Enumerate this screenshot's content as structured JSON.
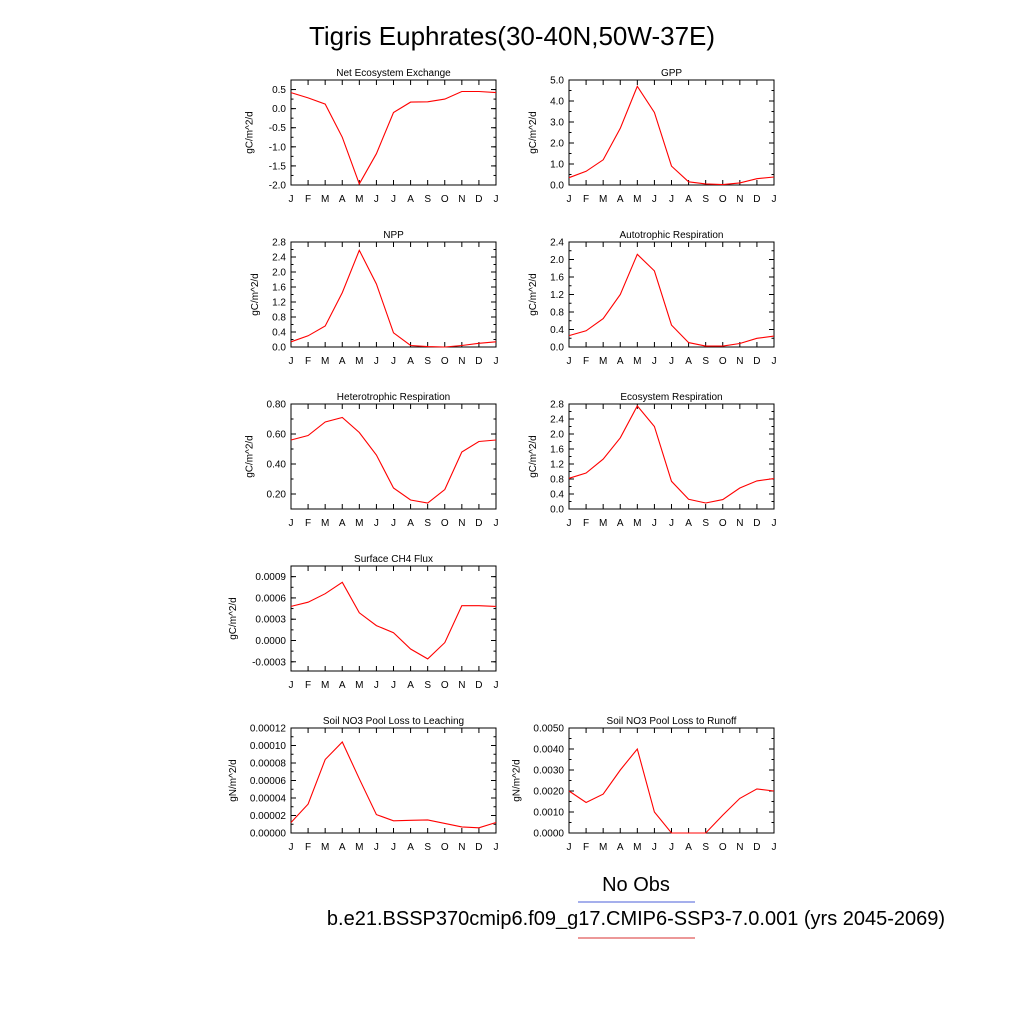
{
  "figure": {
    "title": "Tigris Euphrates(30-40N,50W-37E)",
    "legend": {
      "obs_label": "No Obs",
      "obs_color": "#6f7fe0",
      "model_label": "b.e21.BSSP370cmip6.f09_g17.CMIP6-SSP3-7.0.001 (yrs 2045-2069)",
      "model_color": "#e05a5a"
    },
    "line_color": "#ff0000"
  },
  "chart_data": [
    {
      "type": "line",
      "title": "Net Ecosystem Exchange",
      "ylabel": "gC/m^2/d",
      "x": [
        "J",
        "F",
        "M",
        "A",
        "M",
        "J",
        "J",
        "A",
        "S",
        "O",
        "N",
        "D",
        "J"
      ],
      "yticks": [
        "0.5",
        "0.0",
        "-0.5",
        "-1.0",
        "-1.5",
        "-2.0"
      ],
      "ylim": [
        -2.0,
        0.75
      ],
      "series": [
        {
          "values": [
            0.42,
            0.28,
            0.12,
            -0.75,
            -1.97,
            -1.18,
            -0.1,
            0.17,
            0.18,
            0.25,
            0.45,
            0.45,
            0.42
          ]
        }
      ]
    },
    {
      "type": "line",
      "title": "GPP",
      "ylabel": "gC/m^2/d",
      "x": [
        "J",
        "F",
        "M",
        "A",
        "M",
        "J",
        "J",
        "A",
        "S",
        "O",
        "N",
        "D",
        "J"
      ],
      "yticks": [
        "5.0",
        "4.0",
        "3.0",
        "2.0",
        "1.0",
        "0.0"
      ],
      "ylim": [
        0.0,
        5.0
      ],
      "series": [
        {
          "values": [
            0.35,
            0.65,
            1.2,
            2.7,
            4.7,
            3.45,
            0.9,
            0.15,
            0.05,
            0.02,
            0.1,
            0.3,
            0.38
          ]
        }
      ]
    },
    {
      "type": "line",
      "title": "NPP",
      "ylabel": "gC/m^2/d",
      "x": [
        "J",
        "F",
        "M",
        "A",
        "M",
        "J",
        "J",
        "A",
        "S",
        "O",
        "N",
        "D",
        "J"
      ],
      "yticks": [
        "2.8",
        "2.4",
        "2.0",
        "1.6",
        "1.2",
        "0.8",
        "0.4",
        "0.0"
      ],
      "ylim": [
        0.0,
        2.8
      ],
      "series": [
        {
          "values": [
            0.14,
            0.3,
            0.56,
            1.45,
            2.58,
            1.68,
            0.38,
            0.04,
            0.01,
            0.0,
            0.04,
            0.1,
            0.14
          ]
        }
      ]
    },
    {
      "type": "line",
      "title": "Autotrophic Respiration",
      "ylabel": "gC/m^2/d",
      "x": [
        "J",
        "F",
        "M",
        "A",
        "M",
        "J",
        "J",
        "A",
        "S",
        "O",
        "N",
        "D",
        "J"
      ],
      "yticks": [
        "2.4",
        "2.0",
        "1.6",
        "1.2",
        "0.8",
        "0.4",
        "0.0"
      ],
      "ylim": [
        0.0,
        2.4
      ],
      "series": [
        {
          "values": [
            0.26,
            0.37,
            0.65,
            1.2,
            2.12,
            1.74,
            0.5,
            0.1,
            0.02,
            0.02,
            0.08,
            0.2,
            0.25
          ]
        }
      ]
    },
    {
      "type": "line",
      "title": "Heterotrophic Respiration",
      "ylabel": "gC/m^2/d",
      "x": [
        "J",
        "F",
        "M",
        "A",
        "M",
        "J",
        "J",
        "A",
        "S",
        "O",
        "N",
        "D",
        "J"
      ],
      "yticks": [
        "0.80",
        "0.60",
        "0.40",
        "0.20"
      ],
      "ylim": [
        0.1,
        0.8
      ],
      "series": [
        {
          "values": [
            0.56,
            0.59,
            0.68,
            0.71,
            0.61,
            0.46,
            0.24,
            0.16,
            0.14,
            0.23,
            0.48,
            0.55,
            0.56
          ]
        }
      ]
    },
    {
      "type": "line",
      "title": "Ecosystem Respiration",
      "ylabel": "gC/m^2/d",
      "x": [
        "J",
        "F",
        "M",
        "A",
        "M",
        "J",
        "J",
        "A",
        "S",
        "O",
        "N",
        "D",
        "J"
      ],
      "yticks": [
        "2.8",
        "2.4",
        "2.0",
        "1.6",
        "1.2",
        "0.8",
        "0.4",
        "0.0"
      ],
      "ylim": [
        0.0,
        2.8
      ],
      "series": [
        {
          "values": [
            0.82,
            0.96,
            1.33,
            1.9,
            2.75,
            2.2,
            0.74,
            0.26,
            0.16,
            0.25,
            0.56,
            0.75,
            0.81
          ]
        }
      ]
    },
    {
      "type": "line",
      "title": "Surface CH4 Flux",
      "ylabel": "gC/m^2/d",
      "x": [
        "J",
        "F",
        "M",
        "A",
        "M",
        "J",
        "J",
        "A",
        "S",
        "O",
        "N",
        "D",
        "J"
      ],
      "yticks": [
        "0.0009",
        "0.0006",
        "0.0003",
        "0.0000",
        "-0.0003"
      ],
      "ylim": [
        -0.00043,
        0.00105
      ],
      "series": [
        {
          "values": [
            0.00048,
            0.00054,
            0.00066,
            0.00082,
            0.00039,
            0.00021,
            0.00011,
            -0.00012,
            -0.00026,
            -3e-05,
            0.00049,
            0.00049,
            0.00048
          ]
        }
      ]
    },
    {
      "type": "line",
      "title": "Soil NO3 Pool Loss to Leaching",
      "ylabel": "gN/m^2/d",
      "x": [
        "J",
        "F",
        "M",
        "A",
        "M",
        "J",
        "J",
        "A",
        "S",
        "O",
        "N",
        "D",
        "J"
      ],
      "yticks": [
        "0.00012",
        "0.00010",
        "0.00008",
        "0.00006",
        "0.00004",
        "0.00002",
        "0.00000"
      ],
      "ylim": [
        0.0,
        0.00012
      ],
      "series": [
        {
          "values": [
            1.2e-05,
            3.3e-05,
            8.4e-05,
            0.000104,
            6.2e-05,
            2.1e-05,
            1.4e-05,
            1.45e-05,
            1.5e-05,
            1.1e-05,
            7e-06,
            6e-06,
            1.2e-05
          ]
        }
      ]
    },
    {
      "type": "line",
      "title": "Soil NO3 Pool Loss to Runoff",
      "ylabel": "gN/m^2/d",
      "x": [
        "J",
        "F",
        "M",
        "A",
        "M",
        "J",
        "J",
        "A",
        "S",
        "O",
        "N",
        "D",
        "J"
      ],
      "yticks": [
        "0.0050",
        "0.0040",
        "0.0030",
        "0.0020",
        "0.0010",
        "0.0000"
      ],
      "ylim": [
        0.0,
        0.005
      ],
      "series": [
        {
          "values": [
            0.002,
            0.00145,
            0.00185,
            0.003,
            0.004,
            0.001,
            0.0,
            0.0,
            0.0,
            0.00085,
            0.00165,
            0.0021,
            0.002
          ]
        }
      ]
    }
  ]
}
